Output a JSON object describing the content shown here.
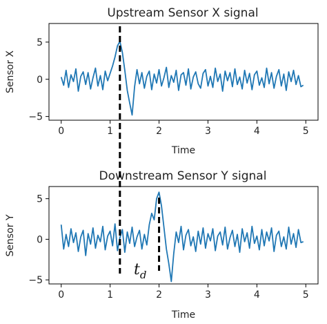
{
  "chart_data": [
    {
      "type": "line",
      "title": "Upstream Sensor X signal",
      "xlabel": "Time",
      "ylabel": "Sensor X",
      "xlim": [
        -0.25,
        5.25
      ],
      "ylim": [
        -5.5,
        7.5
      ],
      "xticks": [
        "0",
        "1",
        "2",
        "3",
        "4",
        "5"
      ],
      "yticks": [
        "-5",
        "0",
        "5"
      ],
      "color": "#1f77b4",
      "series": [
        {
          "x": [
            0.0,
            0.05,
            0.1,
            0.15,
            0.2,
            0.25,
            0.3,
            0.35,
            0.4,
            0.45,
            0.5,
            0.55,
            0.6,
            0.65,
            0.7,
            0.75,
            0.8,
            0.85,
            0.9,
            0.95,
            1.0,
            1.05,
            1.1,
            1.15,
            1.2,
            1.25,
            1.3,
            1.35,
            1.4,
            1.45,
            1.5,
            1.55,
            1.6,
            1.65,
            1.7,
            1.75,
            1.8,
            1.85,
            1.9,
            1.95,
            2.0,
            2.05,
            2.1,
            2.15,
            2.2,
            2.25,
            2.3,
            2.35,
            2.4,
            2.45,
            2.5,
            2.55,
            2.6,
            2.65,
            2.7,
            2.75,
            2.8,
            2.85,
            2.9,
            2.95,
            3.0,
            3.05,
            3.1,
            3.15,
            3.2,
            3.25,
            3.3,
            3.35,
            3.4,
            3.45,
            3.5,
            3.55,
            3.6,
            3.65,
            3.7,
            3.75,
            3.8,
            3.85,
            3.9,
            3.95,
            4.0,
            4.05,
            4.1,
            4.15,
            4.2,
            4.25,
            4.3,
            4.35,
            4.4,
            4.45,
            4.5,
            4.55,
            4.6,
            4.65,
            4.7,
            4.75,
            4.8,
            4.85,
            4.9,
            4.95
          ],
          "y": [
            0.3,
            -0.8,
            1.2,
            -1.1,
            0.6,
            -0.3,
            1.4,
            -1.6,
            0.4,
            1.0,
            -0.7,
            0.9,
            -1.3,
            0.2,
            1.5,
            -0.9,
            0.5,
            -1.4,
            1.1,
            -0.2,
            0.8,
            1.8,
            3.0,
            4.5,
            5.1,
            3.6,
            1.2,
            -1.5,
            -3.2,
            -4.8,
            -1.0,
            1.3,
            -0.6,
            0.9,
            -1.2,
            0.4,
            1.1,
            -1.4,
            0.7,
            -0.5,
            1.3,
            -0.9,
            0.2,
            1.6,
            -1.1,
            0.5,
            -0.4,
            1.2,
            -1.5,
            0.6,
            0.9,
            -0.8,
            1.4,
            -1.3,
            0.3,
            1.0,
            -0.6,
            -1.2,
            0.8,
            1.3,
            -0.9,
            0.4,
            -1.1,
            1.5,
            -0.3,
            0.7,
            -1.6,
            1.1,
            -0.2,
            0.9,
            -1.0,
            1.4,
            -0.7,
            0.3,
            -1.3,
            1.2,
            -0.5,
            0.8,
            -1.4,
            0.6,
            1.1,
            -0.8,
            0.2,
            -1.1,
            1.5,
            -0.6,
            0.9,
            -1.2,
            0.4,
            1.3,
            -0.9,
            0.7,
            -1.5,
            1.0,
            -0.3,
            1.2,
            -0.7,
            0.5,
            -1.0,
            -0.8
          ]
        }
      ]
    },
    {
      "type": "line",
      "title": "Downstream Sensor Y signal",
      "xlabel": "Time",
      "ylabel": "Sensor Y",
      "xlim": [
        -0.25,
        5.25
      ],
      "ylim": [
        -5.5,
        6.5
      ],
      "xticks": [
        "0",
        "1",
        "2",
        "3",
        "4",
        "5"
      ],
      "yticks": [
        "-5",
        "0",
        "5"
      ],
      "color": "#1f77b4",
      "series": [
        {
          "x": [
            0.0,
            0.05,
            0.1,
            0.15,
            0.2,
            0.25,
            0.3,
            0.35,
            0.4,
            0.45,
            0.5,
            0.55,
            0.6,
            0.65,
            0.7,
            0.75,
            0.8,
            0.85,
            0.9,
            0.95,
            1.0,
            1.05,
            1.1,
            1.15,
            1.2,
            1.25,
            1.3,
            1.35,
            1.4,
            1.45,
            1.5,
            1.55,
            1.6,
            1.65,
            1.7,
            1.75,
            1.8,
            1.85,
            1.9,
            1.95,
            2.0,
            2.05,
            2.1,
            2.15,
            2.2,
            2.25,
            2.3,
            2.35,
            2.4,
            2.45,
            2.5,
            2.55,
            2.6,
            2.65,
            2.7,
            2.75,
            2.8,
            2.85,
            2.9,
            2.95,
            3.0,
            3.05,
            3.1,
            3.15,
            3.2,
            3.25,
            3.3,
            3.35,
            3.4,
            3.45,
            3.5,
            3.55,
            3.6,
            3.65,
            3.7,
            3.75,
            3.8,
            3.85,
            3.9,
            3.95,
            4.0,
            4.05,
            4.1,
            4.15,
            4.2,
            4.25,
            4.3,
            4.35,
            4.4,
            4.45,
            4.5,
            4.55,
            4.6,
            4.65,
            4.7,
            4.75,
            4.8,
            4.85,
            4.9,
            4.95
          ],
          "y": [
            1.8,
            -1.2,
            0.6,
            -0.9,
            1.3,
            -0.4,
            0.8,
            -1.5,
            0.3,
            1.1,
            -2.0,
            0.7,
            -0.6,
            1.4,
            -1.1,
            0.5,
            -0.3,
            1.6,
            -1.3,
            0.4,
            1.0,
            -0.8,
            1.9,
            -1.4,
            0.2,
            1.2,
            -1.6,
            0.9,
            -0.5,
            1.5,
            -0.9,
            0.3,
            1.1,
            -1.2,
            0.6,
            -0.7,
            1.8,
            3.2,
            2.4,
            5.0,
            5.8,
            4.1,
            1.5,
            -1.2,
            -3.0,
            -5.2,
            -1.8,
            0.9,
            -0.4,
            1.6,
            -1.3,
            0.5,
            1.2,
            -0.8,
            0.3,
            -1.5,
            1.0,
            -0.6,
            1.4,
            -1.1,
            0.7,
            -0.2,
            1.3,
            -1.4,
            0.4,
            0.9,
            -0.7,
            1.5,
            -1.2,
            0.2,
            1.1,
            -0.9,
            0.6,
            -1.6,
            1.3,
            -0.3,
            0.8,
            -1.1,
            1.6,
            -0.5,
            0.4,
            -1.3,
            1.2,
            -0.8,
            0.9,
            -0.2,
            1.4,
            -1.5,
            0.5,
            1.0,
            -0.9,
            0.3,
            -1.2,
            1.5,
            -0.6,
            0.7,
            -1.0,
            1.2,
            -0.4,
            -0.3
          ]
        }
      ]
    }
  ],
  "annotation": {
    "label": "t",
    "subscript": "d",
    "x_start": 1.2,
    "x_end": 2.0
  }
}
